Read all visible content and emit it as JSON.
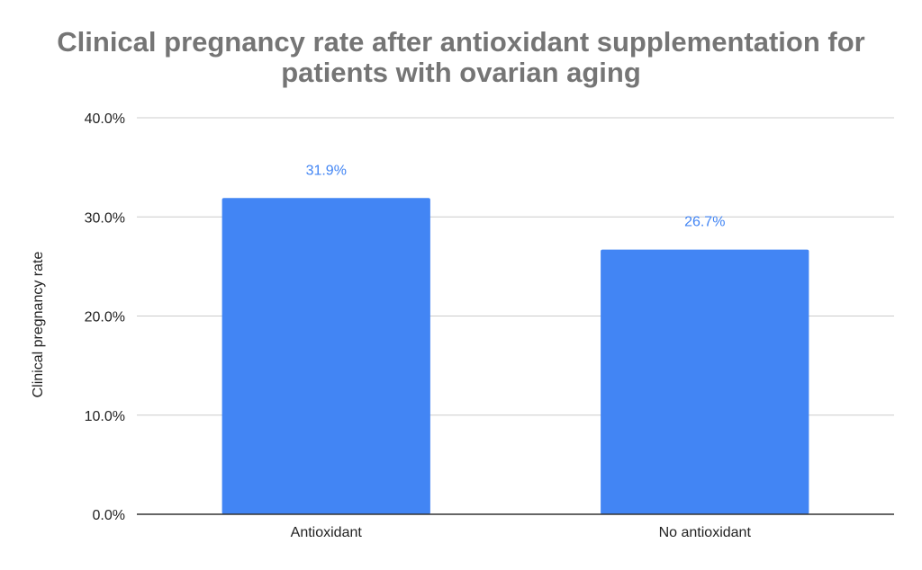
{
  "chart_data": {
    "type": "bar",
    "title": "Clinical pregnancy rate after antioxidant supplementation for patients with ovarian aging",
    "title_lines": [
      "Clinical pregnancy rate after antioxidant supplementation for",
      "patients with ovarian aging"
    ],
    "xlabel": "",
    "ylabel": "Clinical pregnancy rate",
    "categories": [
      "Antioxidant",
      "No antioxidant"
    ],
    "values": [
      31.9,
      26.7
    ],
    "data_labels": [
      "31.9%",
      "26.7%"
    ],
    "ylim": [
      0,
      40
    ],
    "yticks": [
      0,
      10,
      20,
      30,
      40
    ],
    "ytick_labels": [
      "0.0%",
      "10.0%",
      "20.0%",
      "30.0%",
      "40.0%"
    ],
    "grid": true,
    "legend": "none"
  },
  "colors": {
    "bar": "#4285f4",
    "data_label": "#4285f4",
    "title": "#757575",
    "gridline": "#cccccc",
    "axis": "#333333",
    "text": "#222222"
  }
}
